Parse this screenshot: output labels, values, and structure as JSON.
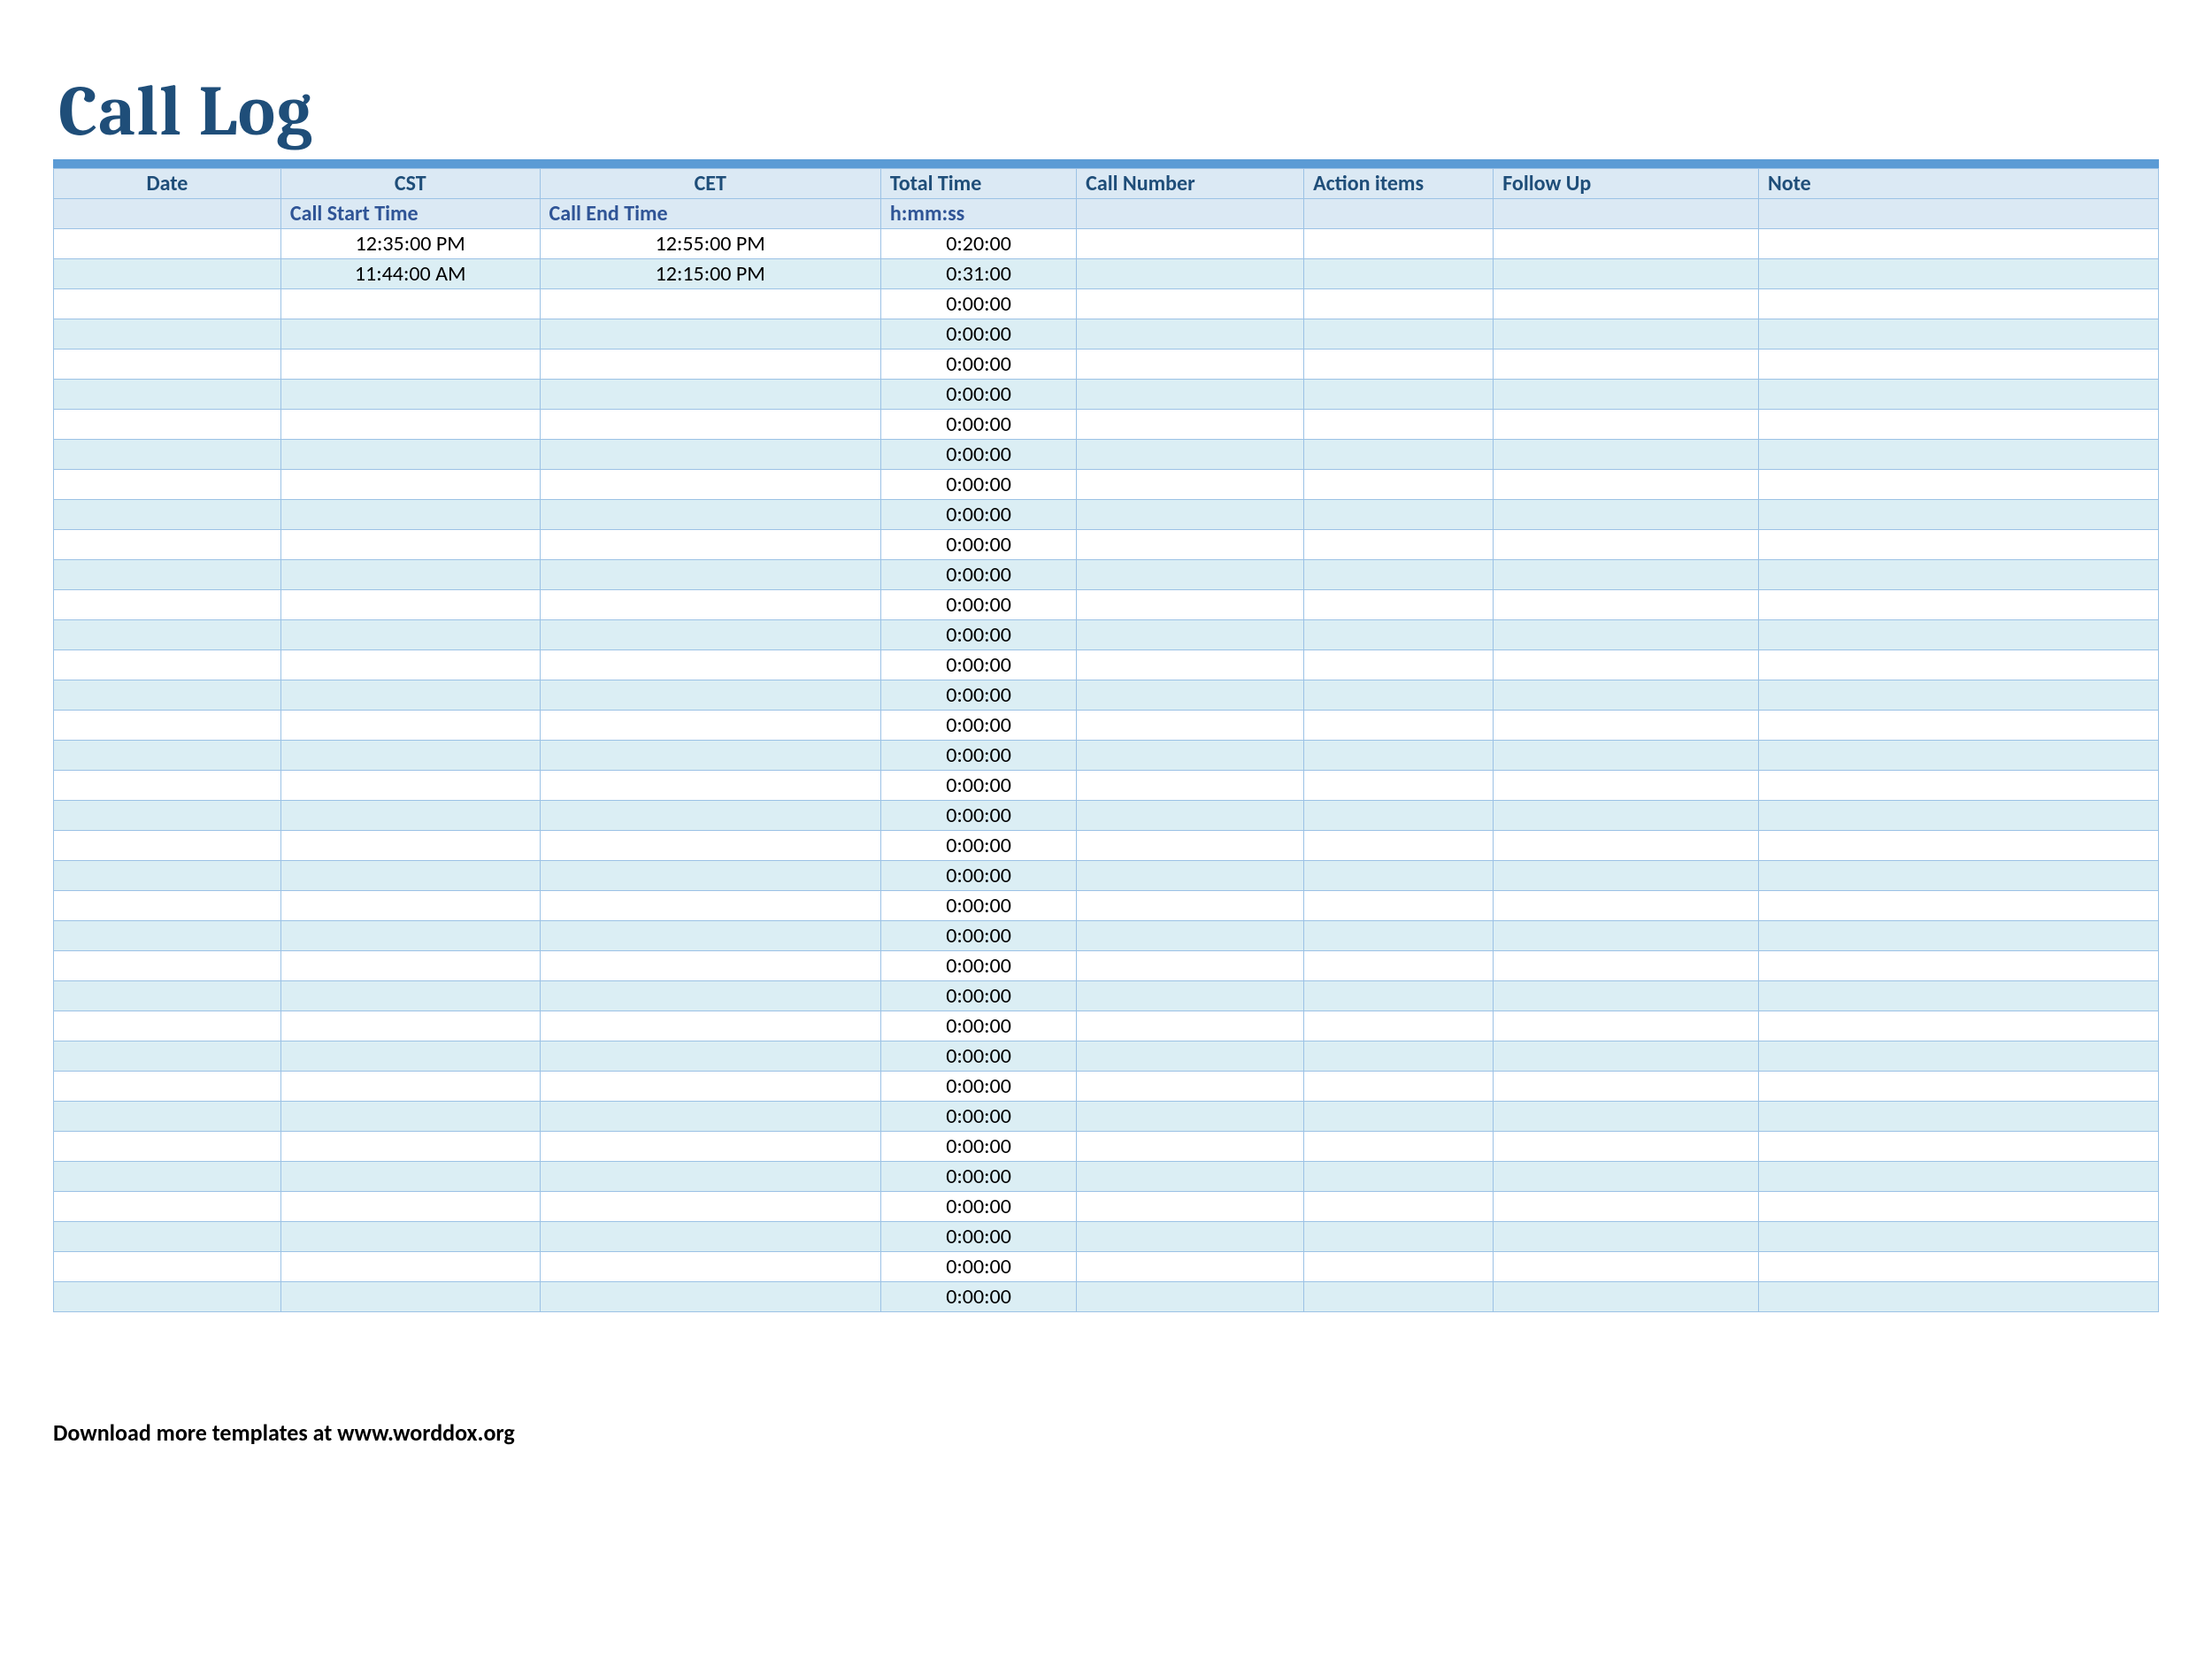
{
  "title": "Call Log",
  "colors": {
    "title": "#1f4e79",
    "header_bg": "#dbe9f4",
    "header_text": "#1f4e79",
    "topbar": "#5b9bd5",
    "border": "#9cc2e5",
    "row_even": "#dbeef4",
    "row_odd": "#ffffff"
  },
  "columns": [
    {
      "key": "date",
      "label": "Date"
    },
    {
      "key": "cst",
      "label": "CST"
    },
    {
      "key": "cet",
      "label": "CET"
    },
    {
      "key": "tt",
      "label": "Total Time"
    },
    {
      "key": "num",
      "label": "Call Number"
    },
    {
      "key": "act",
      "label": "Action items"
    },
    {
      "key": "fu",
      "label": "Follow Up"
    },
    {
      "key": "note",
      "label": "Note"
    }
  ],
  "subheader": {
    "date": "",
    "cst": "Call Start Time",
    "cet": "Call End Time",
    "tt": "h:mm:ss",
    "num": "",
    "act": "",
    "fu": "",
    "note": ""
  },
  "rows": [
    {
      "date": "",
      "cst": "12:35:00 PM",
      "cet": "12:55:00 PM",
      "tt": "0:20:00",
      "num": "",
      "act": "",
      "fu": "",
      "note": ""
    },
    {
      "date": "",
      "cst": "11:44:00 AM",
      "cet": "12:15:00 PM",
      "tt": "0:31:00",
      "num": "",
      "act": "",
      "fu": "",
      "note": ""
    },
    {
      "date": "",
      "cst": "",
      "cet": "",
      "tt": "0:00:00",
      "num": "",
      "act": "",
      "fu": "",
      "note": ""
    },
    {
      "date": "",
      "cst": "",
      "cet": "",
      "tt": "0:00:00",
      "num": "",
      "act": "",
      "fu": "",
      "note": ""
    },
    {
      "date": "",
      "cst": "",
      "cet": "",
      "tt": "0:00:00",
      "num": "",
      "act": "",
      "fu": "",
      "note": ""
    },
    {
      "date": "",
      "cst": "",
      "cet": "",
      "tt": "0:00:00",
      "num": "",
      "act": "",
      "fu": "",
      "note": ""
    },
    {
      "date": "",
      "cst": "",
      "cet": "",
      "tt": "0:00:00",
      "num": "",
      "act": "",
      "fu": "",
      "note": ""
    },
    {
      "date": "",
      "cst": "",
      "cet": "",
      "tt": "0:00:00",
      "num": "",
      "act": "",
      "fu": "",
      "note": ""
    },
    {
      "date": "",
      "cst": "",
      "cet": "",
      "tt": "0:00:00",
      "num": "",
      "act": "",
      "fu": "",
      "note": ""
    },
    {
      "date": "",
      "cst": "",
      "cet": "",
      "tt": "0:00:00",
      "num": "",
      "act": "",
      "fu": "",
      "note": ""
    },
    {
      "date": "",
      "cst": "",
      "cet": "",
      "tt": "0:00:00",
      "num": "",
      "act": "",
      "fu": "",
      "note": ""
    },
    {
      "date": "",
      "cst": "",
      "cet": "",
      "tt": "0:00:00",
      "num": "",
      "act": "",
      "fu": "",
      "note": ""
    },
    {
      "date": "",
      "cst": "",
      "cet": "",
      "tt": "0:00:00",
      "num": "",
      "act": "",
      "fu": "",
      "note": ""
    },
    {
      "date": "",
      "cst": "",
      "cet": "",
      "tt": "0:00:00",
      "num": "",
      "act": "",
      "fu": "",
      "note": ""
    },
    {
      "date": "",
      "cst": "",
      "cet": "",
      "tt": "0:00:00",
      "num": "",
      "act": "",
      "fu": "",
      "note": ""
    },
    {
      "date": "",
      "cst": "",
      "cet": "",
      "tt": "0:00:00",
      "num": "",
      "act": "",
      "fu": "",
      "note": ""
    },
    {
      "date": "",
      "cst": "",
      "cet": "",
      "tt": "0:00:00",
      "num": "",
      "act": "",
      "fu": "",
      "note": ""
    },
    {
      "date": "",
      "cst": "",
      "cet": "",
      "tt": "0:00:00",
      "num": "",
      "act": "",
      "fu": "",
      "note": ""
    },
    {
      "date": "",
      "cst": "",
      "cet": "",
      "tt": "0:00:00",
      "num": "",
      "act": "",
      "fu": "",
      "note": ""
    },
    {
      "date": "",
      "cst": "",
      "cet": "",
      "tt": "0:00:00",
      "num": "",
      "act": "",
      "fu": "",
      "note": ""
    },
    {
      "date": "",
      "cst": "",
      "cet": "",
      "tt": "0:00:00",
      "num": "",
      "act": "",
      "fu": "",
      "note": ""
    },
    {
      "date": "",
      "cst": "",
      "cet": "",
      "tt": "0:00:00",
      "num": "",
      "act": "",
      "fu": "",
      "note": ""
    },
    {
      "date": "",
      "cst": "",
      "cet": "",
      "tt": "0:00:00",
      "num": "",
      "act": "",
      "fu": "",
      "note": ""
    },
    {
      "date": "",
      "cst": "",
      "cet": "",
      "tt": "0:00:00",
      "num": "",
      "act": "",
      "fu": "",
      "note": ""
    },
    {
      "date": "",
      "cst": "",
      "cet": "",
      "tt": "0:00:00",
      "num": "",
      "act": "",
      "fu": "",
      "note": ""
    },
    {
      "date": "",
      "cst": "",
      "cet": "",
      "tt": "0:00:00",
      "num": "",
      "act": "",
      "fu": "",
      "note": ""
    },
    {
      "date": "",
      "cst": "",
      "cet": "",
      "tt": "0:00:00",
      "num": "",
      "act": "",
      "fu": "",
      "note": ""
    },
    {
      "date": "",
      "cst": "",
      "cet": "",
      "tt": "0:00:00",
      "num": "",
      "act": "",
      "fu": "",
      "note": ""
    },
    {
      "date": "",
      "cst": "",
      "cet": "",
      "tt": "0:00:00",
      "num": "",
      "act": "",
      "fu": "",
      "note": ""
    },
    {
      "date": "",
      "cst": "",
      "cet": "",
      "tt": "0:00:00",
      "num": "",
      "act": "",
      "fu": "",
      "note": ""
    },
    {
      "date": "",
      "cst": "",
      "cet": "",
      "tt": "0:00:00",
      "num": "",
      "act": "",
      "fu": "",
      "note": ""
    },
    {
      "date": "",
      "cst": "",
      "cet": "",
      "tt": "0:00:00",
      "num": "",
      "act": "",
      "fu": "",
      "note": ""
    },
    {
      "date": "",
      "cst": "",
      "cet": "",
      "tt": "0:00:00",
      "num": "",
      "act": "",
      "fu": "",
      "note": ""
    },
    {
      "date": "",
      "cst": "",
      "cet": "",
      "tt": "0:00:00",
      "num": "",
      "act": "",
      "fu": "",
      "note": ""
    },
    {
      "date": "",
      "cst": "",
      "cet": "",
      "tt": "0:00:00",
      "num": "",
      "act": "",
      "fu": "",
      "note": ""
    },
    {
      "date": "",
      "cst": "",
      "cet": "",
      "tt": "0:00:00",
      "num": "",
      "act": "",
      "fu": "",
      "note": ""
    }
  ],
  "footer": "Download more templates at www.worddox.org"
}
